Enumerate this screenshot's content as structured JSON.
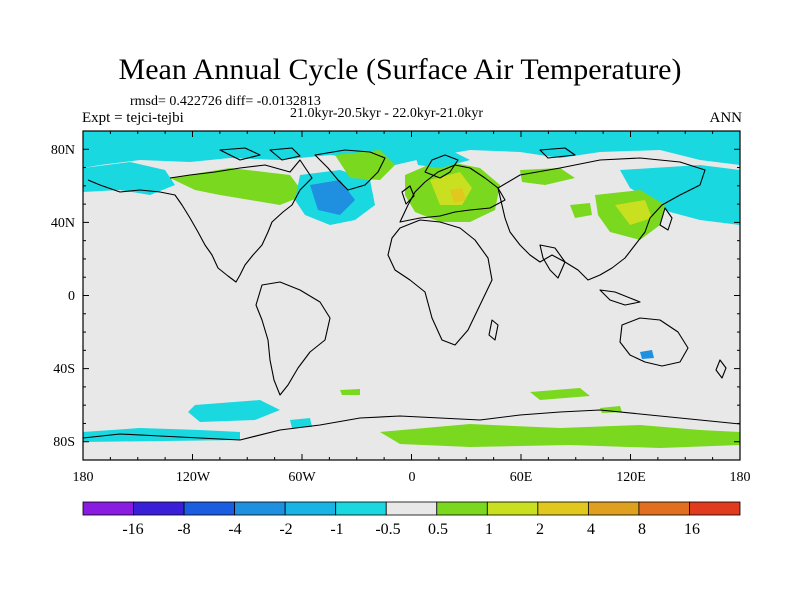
{
  "title": "Mean Annual Cycle (Surface Air Temperature)",
  "stats_line": "rmsd= 0.422726 diff= -0.0132813",
  "period_line": "21.0kyr-20.5kyr - 22.0kyr-21.0kyr",
  "experiment_label": "Expt = tejci-tejbi",
  "season_label": "ANN",
  "lat_ticks": [
    "80N",
    "40N",
    "0",
    "40S",
    "80S"
  ],
  "lon_ticks": [
    "180",
    "120W",
    "60W",
    "0",
    "60E",
    "120E",
    "180"
  ],
  "colorbar": {
    "labels": [
      "-16",
      "-8",
      "-4",
      "-2",
      "-1",
      "-0.5",
      "0.5",
      "1",
      "2",
      "4",
      "8",
      "16"
    ],
    "colors": [
      "#8a1be0",
      "#3a1fd8",
      "#1a5de0",
      "#1f8fe0",
      "#19b4e4",
      "#19d8e0",
      "#e8e8e8",
      "#7ad81f",
      "#c8e01f",
      "#e0c81f",
      "#e0a01f",
      "#e0701f",
      "#e03a1f"
    ]
  },
  "colors": {
    "neutral": "#e8e8e8",
    "cyan": "#19d8e0",
    "lightblue": "#19b4e4",
    "blue": "#1f8fe0",
    "darkblue": "#3a1fd8",
    "green": "#7ad81f",
    "yellow": "#c8e01f",
    "orange": "#e0c81f"
  }
}
